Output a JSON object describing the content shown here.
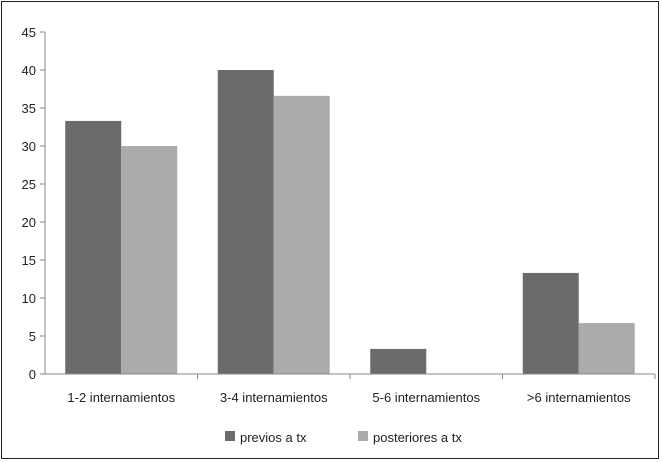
{
  "chart_data": {
    "type": "bar",
    "categories": [
      "1-2 internamientos",
      "3-4 internamientos",
      "5-6 internamientos",
      ">6 internamientos"
    ],
    "series": [
      {
        "name": "previos a tx",
        "values": [
          33.3,
          40.0,
          3.3,
          13.3
        ],
        "color": "#6b6b6b"
      },
      {
        "name": "posteriores a tx",
        "values": [
          30.0,
          36.6,
          0,
          6.7
        ],
        "color": "#ababab"
      }
    ],
    "yticks": [
      0,
      5,
      10,
      15,
      20,
      25,
      30,
      35,
      40,
      45
    ],
    "ylim": [
      0,
      45
    ],
    "title": "",
    "xlabel": "",
    "ylabel": "",
    "grid": false,
    "legend_position": "bottom"
  }
}
